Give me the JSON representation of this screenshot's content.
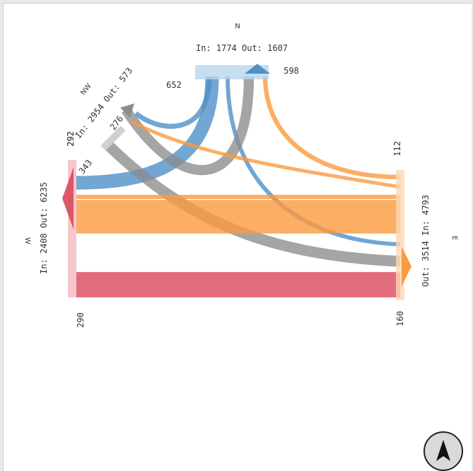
{
  "chart_data": {
    "type": "sankey",
    "directions": [
      {
        "id": "N",
        "name": "N",
        "in": 1774,
        "out": 1607,
        "in_text": "In: 1774",
        "out_text": "Out: 1607",
        "side_a": 652,
        "side_b": 598
      },
      {
        "id": "NW",
        "name": "NW",
        "in": 2954,
        "out": 573,
        "in_text": "In: 2954",
        "out_text": "Out: 573",
        "side_a": 292,
        "side_b": 276,
        "side_c": 343
      },
      {
        "id": "W",
        "name": "W",
        "in": 2408,
        "out": 6235,
        "in_text": "In: 2408",
        "out_text": "Out: 6235",
        "side_a": 292,
        "side_b": 290
      },
      {
        "id": "E",
        "name": "E",
        "in": 4793,
        "out": 3514,
        "in_text": "In: 4793",
        "out_text": "Out: 3514",
        "side_a": 112,
        "side_b": 160
      }
    ],
    "colors": {
      "N": "#4f90c8",
      "NW": "#8c8c8c",
      "W": "#d9485a",
      "E": "#fb9a3e"
    },
    "flows": [
      {
        "from": "N",
        "to": "NW",
        "value": 420,
        "color": "N"
      },
      {
        "from": "N",
        "to": "W",
        "value": 1150,
        "color": "N"
      },
      {
        "from": "N",
        "to": "E",
        "value": 350,
        "color": "N"
      },
      {
        "from": "NW",
        "to": "N",
        "value": 860,
        "color": "NW"
      },
      {
        "from": "NW",
        "to": "E",
        "value": 920,
        "color": "NW"
      },
      {
        "from": "E",
        "to": "N",
        "value": 380,
        "color": "E"
      },
      {
        "from": "E",
        "to": "NW",
        "value": 300,
        "color": "E"
      },
      {
        "from": "E",
        "to": "W",
        "value": 360,
        "color": "E"
      },
      {
        "from": "E",
        "to": "W",
        "value": 2850,
        "color": "E"
      },
      {
        "from": "W",
        "to": "E",
        "value": 2150,
        "color": "W"
      }
    ],
    "labels": {
      "N_title": "N",
      "N_io": "In: 1774 Out: 1607",
      "N_left": "652",
      "N_right": "598",
      "NW_title": "NW",
      "NW_io": "In: 2954 Out: 573",
      "NW_a": "292",
      "NW_b": "276",
      "NW_c": "343",
      "W_title": "W",
      "W_io": "In: 2408  Out: 6235",
      "W_top": "292",
      "W_bottom": "290",
      "E_title": "E",
      "E_io": "Out: 3514  In: 4793",
      "E_top": "112",
      "E_bottom": "160"
    }
  },
  "compass": {
    "icon": "north-arrow-icon"
  }
}
